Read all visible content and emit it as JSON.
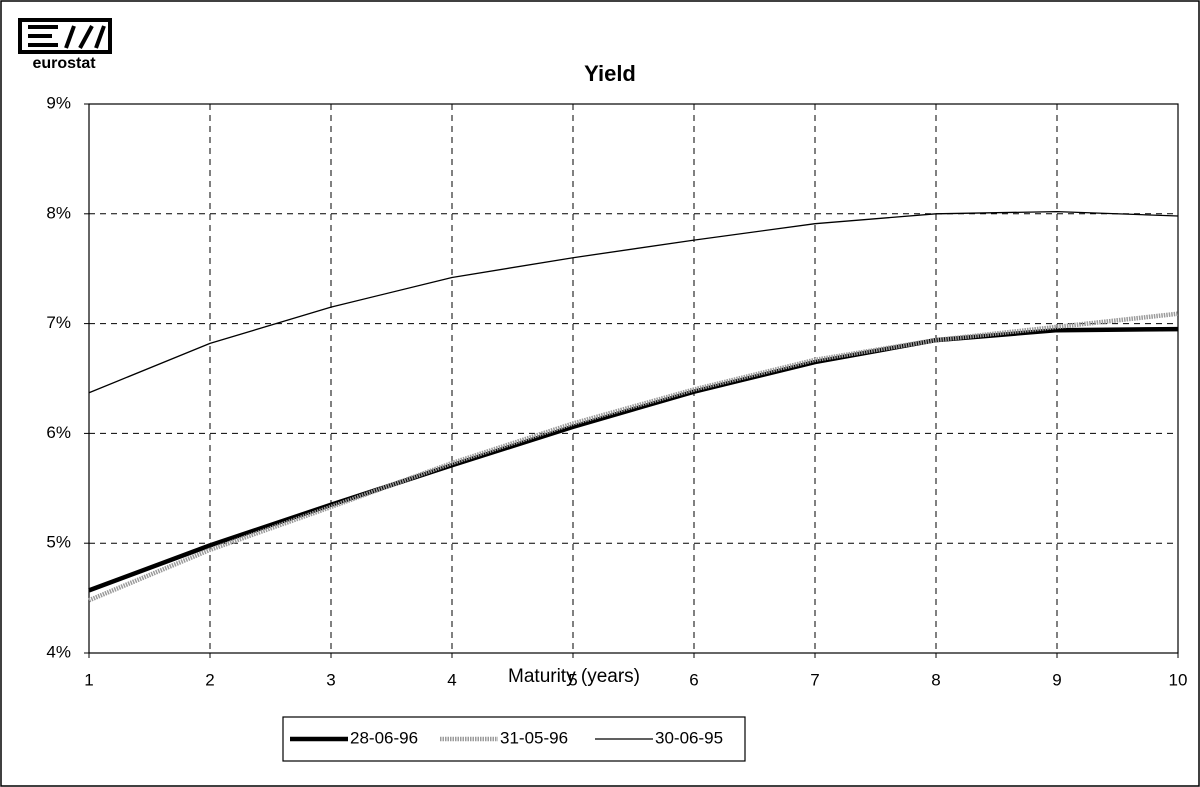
{
  "logo": {
    "text": "eurostat"
  },
  "chart_data": {
    "type": "line",
    "title": "Yield",
    "x_label": "Maturity (years)",
    "x": [
      1,
      2,
      3,
      4,
      5,
      6,
      7,
      8,
      9,
      10
    ],
    "xlim": [
      1,
      10
    ],
    "xticks": [
      1,
      2,
      3,
      4,
      5,
      6,
      7,
      8,
      9,
      10
    ],
    "ylim": [
      4,
      9
    ],
    "yticks": [
      {
        "value": 4,
        "label": "4%"
      },
      {
        "value": 5,
        "label": "5%"
      },
      {
        "value": 6,
        "label": "6%"
      },
      {
        "value": 7,
        "label": "7%"
      },
      {
        "value": 8,
        "label": "8%"
      },
      {
        "value": 9,
        "label": "9%"
      }
    ],
    "grid": true,
    "legend": "bottom",
    "series": [
      {
        "name": "28-06-96",
        "color": "#000000",
        "values": [
          4.57,
          4.98,
          5.35,
          5.71,
          6.06,
          6.38,
          6.65,
          6.85,
          6.94,
          6.95
        ]
      },
      {
        "name": "31-05-96",
        "color": "#9a9a9a",
        "values": [
          4.48,
          4.94,
          5.33,
          5.73,
          6.09,
          6.4,
          6.67,
          6.85,
          6.97,
          7.09
        ]
      },
      {
        "name": "30-06-95",
        "color": "#000000",
        "values": [
          6.37,
          6.82,
          7.15,
          7.42,
          7.6,
          7.76,
          7.91,
          8.0,
          8.02,
          7.98
        ]
      }
    ]
  }
}
